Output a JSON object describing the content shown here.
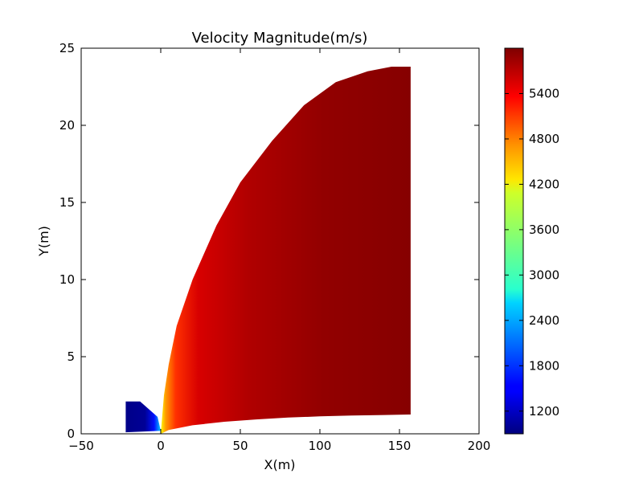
{
  "chart_data": {
    "type": "heatmap",
    "title": "Velocity Magnitude(m/s)",
    "xlabel": "X(m)",
    "ylabel": "Y(m)",
    "xlim": [
      -50,
      200
    ],
    "ylim": [
      0,
      25
    ],
    "x_ticks": [
      "−50",
      "0",
      "50",
      "100",
      "150",
      "200"
    ],
    "y_ticks": [
      "0",
      "5",
      "10",
      "15",
      "20",
      "25"
    ],
    "x_tick_values": [
      -50,
      0,
      50,
      100,
      150,
      200
    ],
    "y_tick_values": [
      0,
      5,
      10,
      15,
      20,
      25
    ],
    "grid": false,
    "colormap": "jet",
    "colorbar": {
      "min": 900,
      "max": 6000,
      "ticks": [
        1200,
        1800,
        2400,
        3000,
        3600,
        4200,
        4800,
        5400
      ],
      "tick_labels": [
        "1200",
        "1800",
        "2400",
        "3000",
        "3600",
        "4200",
        "4800",
        "5400"
      ]
    },
    "regions": [
      {
        "name": "inlet",
        "speed_range": [
          900,
          2500
        ],
        "outline": [
          [
            -22,
            0.1
          ],
          [
            -22,
            2.1
          ],
          [
            -13,
            2.1
          ],
          [
            -2,
            1.1
          ],
          [
            0,
            0.2
          ]
        ]
      },
      {
        "name": "plume",
        "speed_range": [
          3800,
          5950
        ],
        "outer_edge": [
          [
            0,
            0
          ],
          [
            2,
            2.5
          ],
          [
            5,
            4.5
          ],
          [
            10,
            7
          ],
          [
            20,
            10
          ],
          [
            35,
            13.5
          ],
          [
            50,
            16.3
          ],
          [
            70,
            19
          ],
          [
            90,
            21.3
          ],
          [
            110,
            22.8
          ],
          [
            130,
            23.5
          ],
          [
            145,
            23.8
          ],
          [
            157,
            23.8
          ]
        ],
        "inner_edge": [
          [
            0,
            0
          ],
          [
            5,
            0.25
          ],
          [
            20,
            0.55
          ],
          [
            40,
            0.78
          ],
          [
            60,
            0.93
          ],
          [
            80,
            1.05
          ],
          [
            100,
            1.13
          ],
          [
            120,
            1.19
          ],
          [
            140,
            1.22
          ],
          [
            157,
            1.25
          ]
        ],
        "x_end": 157
      }
    ]
  }
}
